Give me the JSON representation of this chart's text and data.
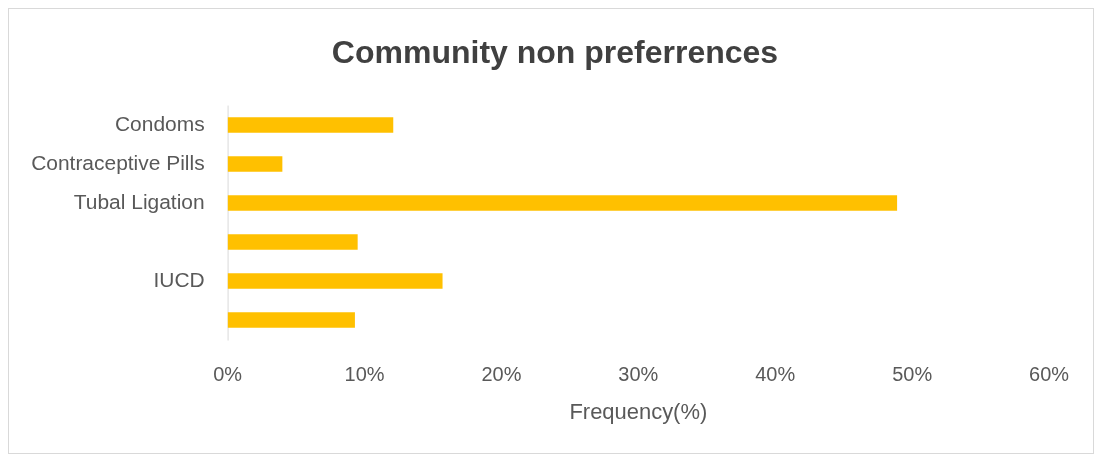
{
  "chart_data": {
    "type": "bar",
    "orientation": "horizontal",
    "title": "Community non preferrences",
    "xlabel": "Frequency(%)",
    "categories": [
      "Condoms",
      "Contraceptive Pills",
      "Tubal Ligation",
      null,
      "IUCD",
      null
    ],
    "values": [
      12.1,
      4.0,
      48.9,
      9.5,
      15.7,
      9.3
    ],
    "color": "#ffc000",
    "xlim": [
      0,
      60
    ],
    "xticks": [
      {
        "value": 0,
        "label": "0%"
      },
      {
        "value": 10,
        "label": "10%"
      },
      {
        "value": 20,
        "label": "20%"
      },
      {
        "value": 30,
        "label": "30%"
      },
      {
        "value": 40,
        "label": "40%"
      },
      {
        "value": 50,
        "label": "50%"
      },
      {
        "value": 60,
        "label": "60%"
      }
    ],
    "grid": false,
    "legend": false
  }
}
